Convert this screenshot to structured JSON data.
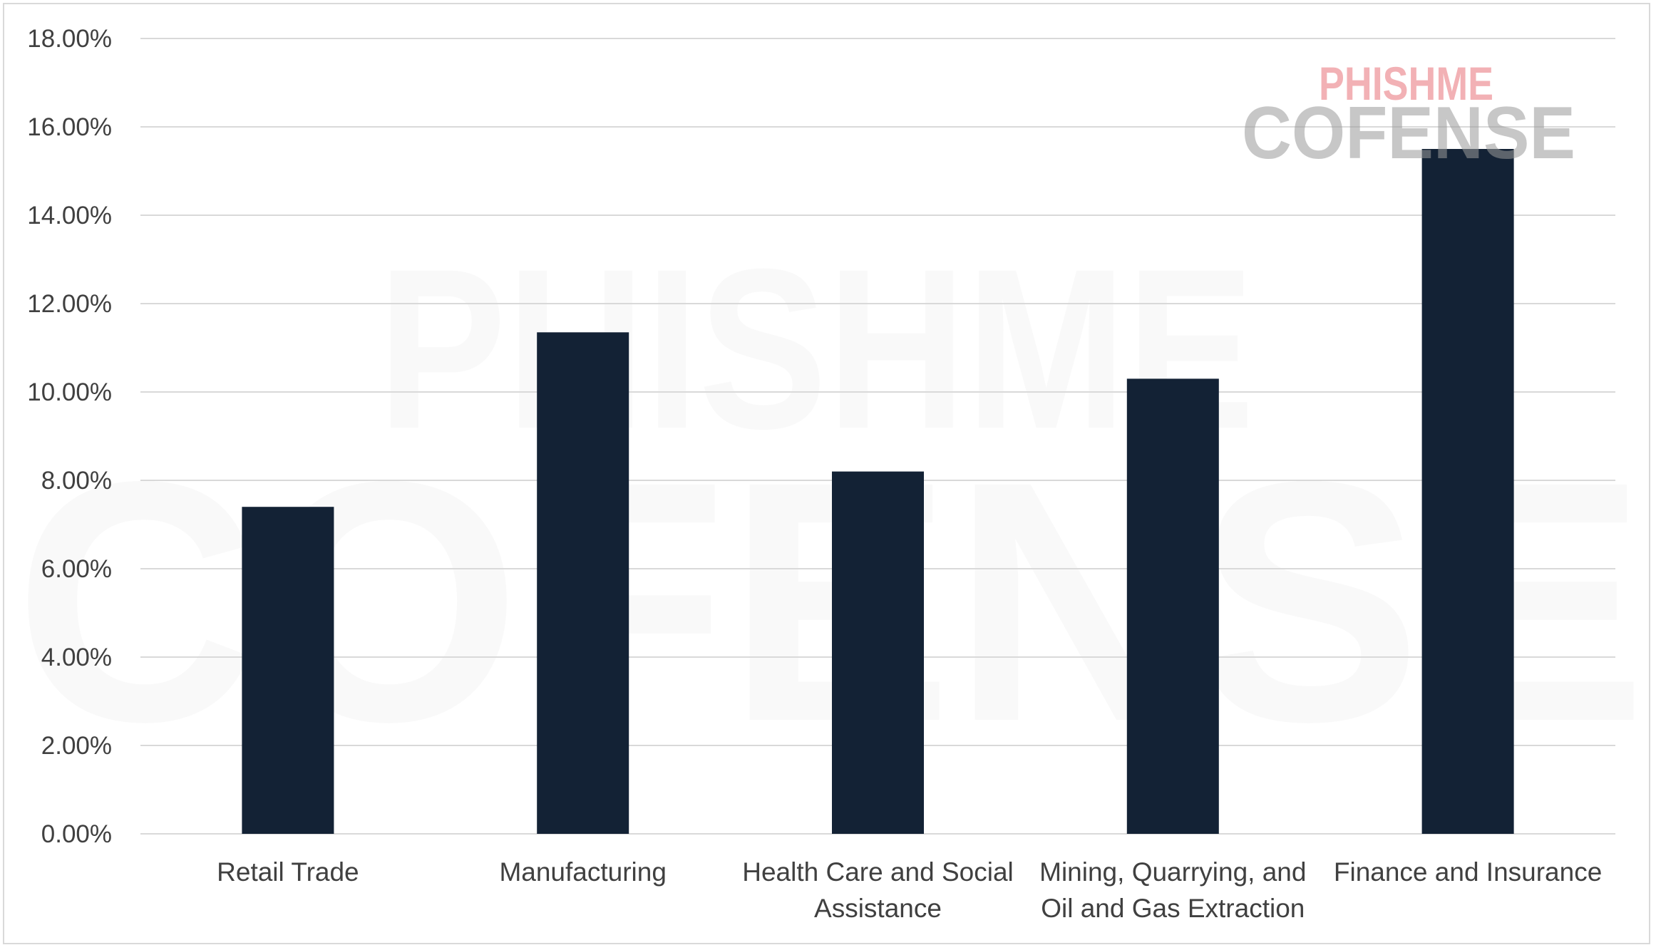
{
  "chart_data": {
    "type": "bar",
    "categories": [
      [
        "Retail Trade"
      ],
      [
        "Manufacturing"
      ],
      [
        "Health Care and Social",
        "Assistance"
      ],
      [
        "Mining, Quarrying, and",
        "Oil and Gas Extraction"
      ],
      [
        "Finance and Insurance"
      ]
    ],
    "values": [
      7.4,
      11.35,
      8.2,
      10.3,
      15.5
    ],
    "ylim": [
      0,
      18
    ],
    "y_ticks": [
      "0.00%",
      "2.00%",
      "4.00%",
      "6.00%",
      "8.00%",
      "10.00%",
      "12.00%",
      "14.00%",
      "16.00%",
      "18.00%"
    ],
    "y_tick_values": [
      0,
      2,
      4,
      6,
      8,
      10,
      12,
      14,
      16,
      18
    ],
    "grid": true,
    "legend": "none",
    "bar_color": "#132235"
  },
  "watermark": {
    "line1": "PHISHME",
    "line2": "COFENSE",
    "accent_color": "#e8737a",
    "gray_color": "#9a9a9a"
  }
}
